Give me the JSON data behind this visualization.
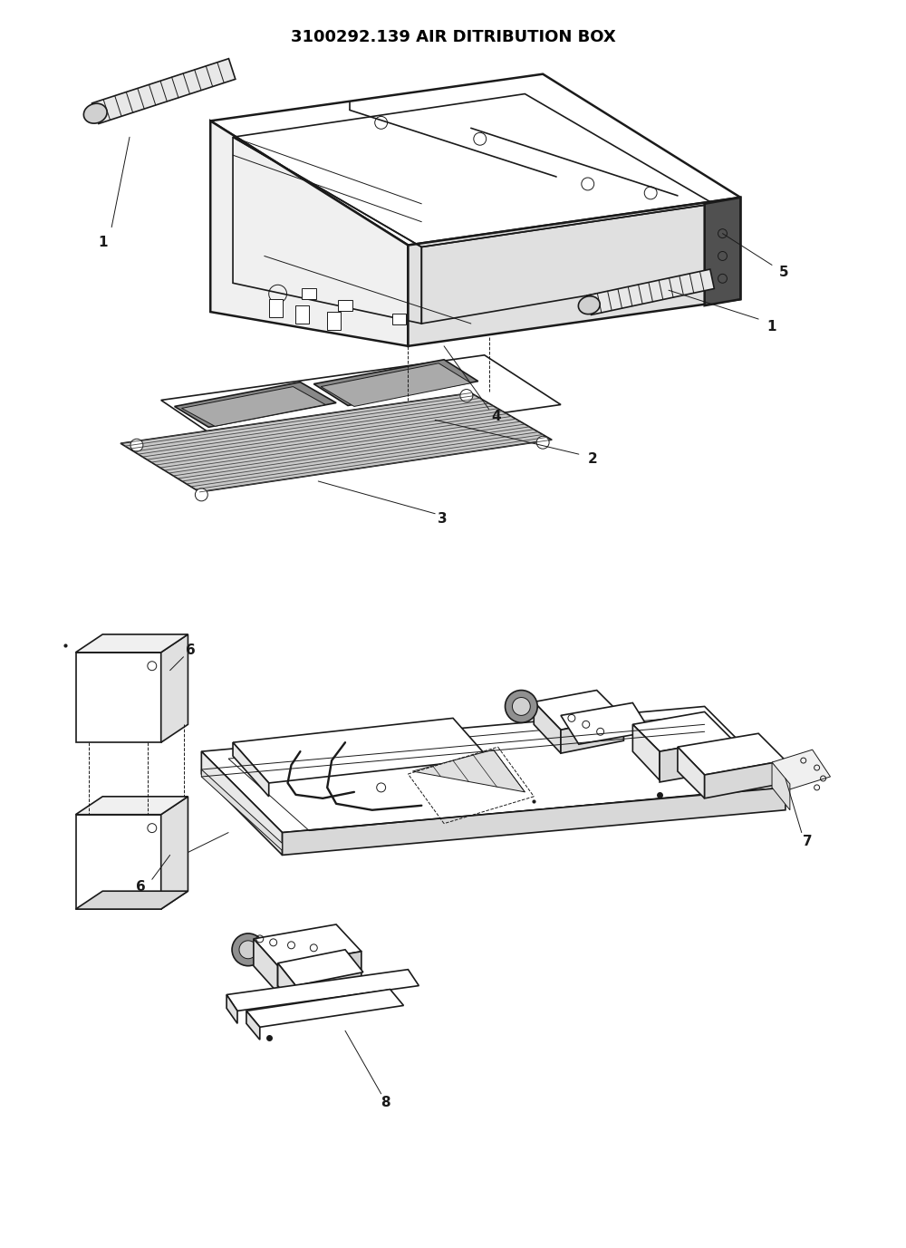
{
  "title": "3100292.139 AIR DITRIBUTION BOX",
  "title_fontsize": 13,
  "title_fontweight": "bold",
  "background_color": "#ffffff",
  "line_color": "#1a1a1a",
  "figsize": [
    10,
    13.77
  ],
  "dpi": 100
}
